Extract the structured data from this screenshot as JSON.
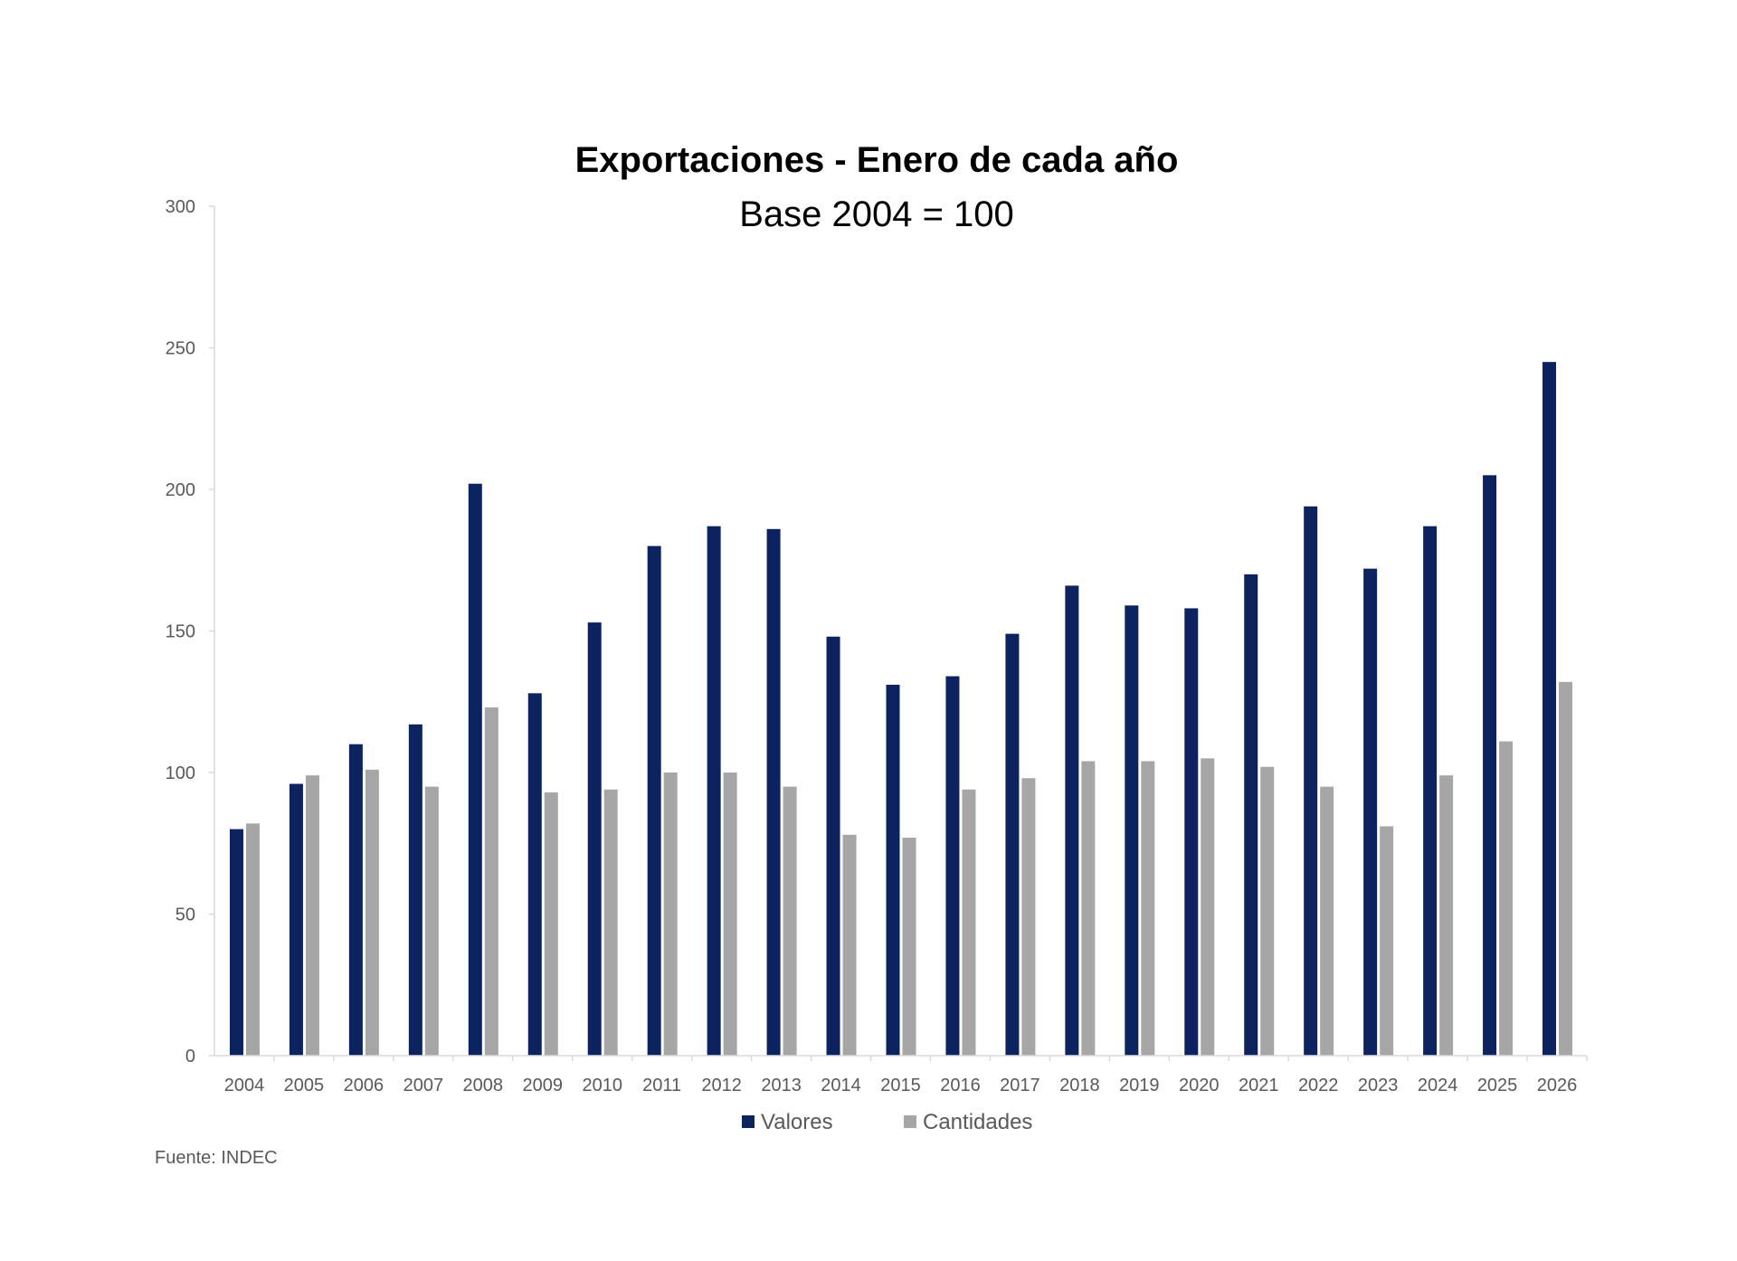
{
  "chart_data": {
    "type": "bar",
    "title": "Exportaciones - Enero de cada año",
    "subtitle": "Base 2004 = 100",
    "xlabel": "",
    "ylabel": "",
    "ylim": [
      0,
      300
    ],
    "yticks": [
      0,
      50,
      100,
      150,
      200,
      250,
      300
    ],
    "grid": false,
    "legend_position": "bottom",
    "categories": [
      "2004",
      "2005",
      "2006",
      "2007",
      "2008",
      "2009",
      "2010",
      "2011",
      "2012",
      "2013",
      "2014",
      "2015",
      "2016",
      "2017",
      "2018",
      "2019",
      "2020",
      "2021",
      "2022",
      "2023",
      "2024",
      "2025",
      "2026"
    ],
    "series": [
      {
        "name": "Valores",
        "color": "#0d2360",
        "values": [
          80,
          96,
          110,
          117,
          202,
          128,
          153,
          180,
          187,
          186,
          148,
          131,
          134,
          149,
          166,
          159,
          158,
          170,
          194,
          172,
          187,
          205,
          245
        ]
      },
      {
        "name": "Cantidades",
        "color": "#a6a6a6",
        "values": [
          82,
          99,
          101,
          95,
          123,
          93,
          94,
          100,
          100,
          95,
          78,
          77,
          94,
          98,
          104,
          104,
          105,
          102,
          95,
          81,
          99,
          111,
          132
        ]
      }
    ],
    "source": "Fuente: INDEC"
  }
}
